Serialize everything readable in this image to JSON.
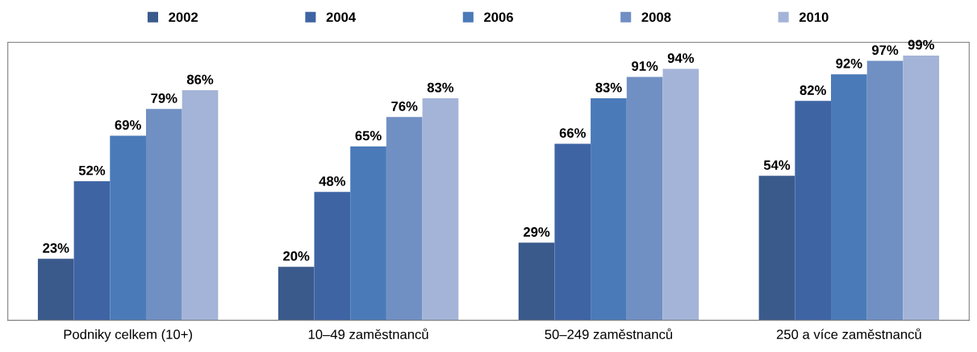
{
  "chart_data": {
    "type": "bar",
    "categories": [
      "Podniky celkem (10+)",
      "10–49 zaměstnanců",
      "50–249 zaměstnanců",
      "250 a více zaměstnanců"
    ],
    "series": [
      {
        "name": "2002",
        "color": "#3a5a8c",
        "values": [
          23,
          20,
          29,
          54
        ],
        "value_labels": [
          "23%",
          "20%",
          "29%",
          "54%"
        ]
      },
      {
        "name": "2004",
        "color": "#3e64a4",
        "values": [
          52,
          48,
          66,
          82
        ],
        "value_labels": [
          "52%",
          "48%",
          "66%",
          "82%"
        ]
      },
      {
        "name": "2006",
        "color": "#4a7ab8",
        "values": [
          69,
          65,
          83,
          92
        ],
        "value_labels": [
          "69%",
          "65%",
          "83%",
          "92%"
        ]
      },
      {
        "name": "2008",
        "color": "#7090c4",
        "values": [
          79,
          76,
          91,
          97
        ],
        "value_labels": [
          "79%",
          "76%",
          "91%",
          "97%"
        ]
      },
      {
        "name": "2010",
        "color": "#a4b4d8",
        "values": [
          86,
          83,
          94,
          99
        ],
        "value_labels": [
          "86%",
          "83%",
          "94%",
          "99%"
        ]
      }
    ],
    "legend": "top",
    "grid": false,
    "tick_labels": "x"
  }
}
